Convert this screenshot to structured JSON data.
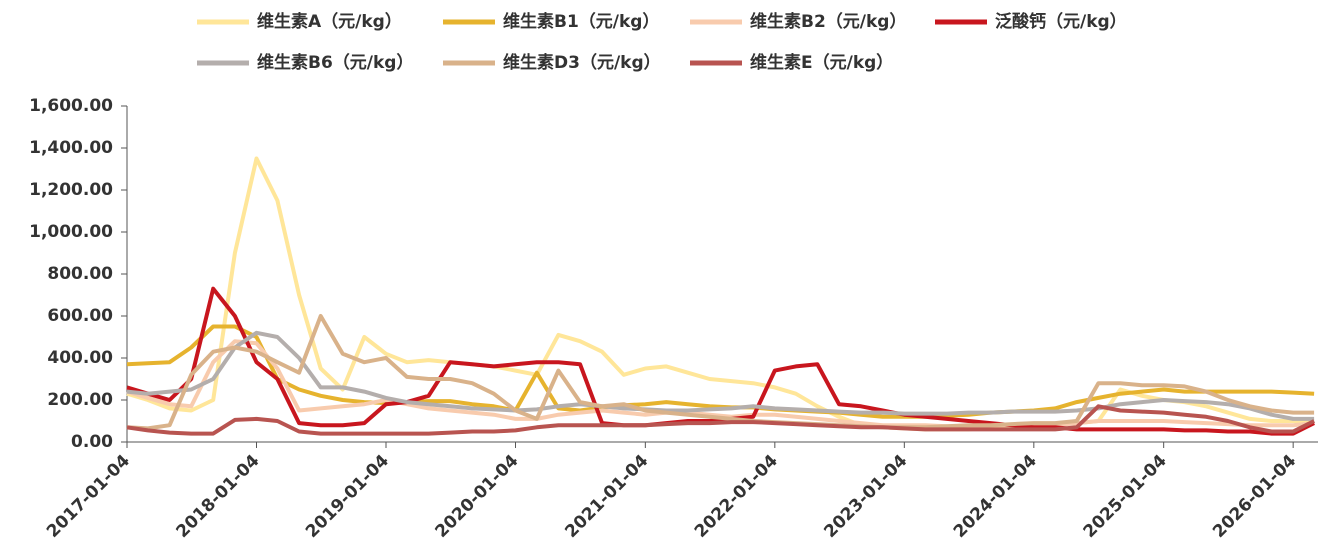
{
  "chart_data": {
    "type": "line",
    "x": [
      "2017-01-04",
      "2017-03-04",
      "2017-05-04",
      "2017-07-04",
      "2017-09-04",
      "2017-11-04",
      "2018-01-04",
      "2018-03-04",
      "2018-05-04",
      "2018-07-04",
      "2018-09-04",
      "2018-11-04",
      "2019-01-04",
      "2019-03-04",
      "2019-05-04",
      "2019-07-04",
      "2019-09-04",
      "2019-11-04",
      "2020-01-04",
      "2020-03-04",
      "2020-05-04",
      "2020-07-04",
      "2020-09-04",
      "2020-11-04",
      "2021-01-04",
      "2021-03-04",
      "2021-05-04",
      "2021-07-04",
      "2021-09-04",
      "2021-11-04",
      "2022-01-04",
      "2022-03-04",
      "2022-05-04",
      "2022-07-04",
      "2022-09-04",
      "2022-11-04",
      "2023-01-04",
      "2023-03-04",
      "2023-05-04",
      "2023-07-04",
      "2023-09-04",
      "2023-11-04",
      "2024-01-04",
      "2024-03-04",
      "2024-05-04",
      "2024-07-04",
      "2024-09-04",
      "2024-11-04",
      "2025-01-04",
      "2025-03-04",
      "2025-05-04",
      "2025-07-04",
      "2025-09-04",
      "2025-11-04",
      "2026-01-04",
      "2026-03-04"
    ],
    "series": [
      {
        "name": "维生素A（元/kg）",
        "color": "#FFE699",
        "values": [
          230,
          200,
          160,
          150,
          200,
          900,
          1350,
          1150,
          700,
          350,
          250,
          500,
          420,
          380,
          390,
          380,
          370,
          360,
          340,
          320,
          510,
          480,
          430,
          320,
          350,
          360,
          330,
          300,
          290,
          280,
          260,
          230,
          170,
          120,
          80,
          70,
          65,
          60,
          60,
          60,
          70,
          75,
          80,
          85,
          90,
          100,
          250,
          220,
          200,
          190,
          170,
          140,
          110,
          100,
          100,
          100
        ]
      },
      {
        "name": "维生素B1（元/kg）",
        "color": "#E6B32E",
        "values": [
          370,
          375,
          380,
          450,
          550,
          550,
          500,
          300,
          250,
          220,
          200,
          190,
          185,
          190,
          195,
          195,
          180,
          170,
          150,
          330,
          160,
          150,
          165,
          175,
          180,
          190,
          180,
          170,
          165,
          165,
          155,
          150,
          145,
          140,
          130,
          120,
          120,
          120,
          125,
          130,
          140,
          145,
          150,
          160,
          190,
          210,
          230,
          240,
          250,
          240,
          240,
          240,
          240,
          240,
          235,
          230
        ]
      },
      {
        "name": "维生素B2（元/kg）",
        "color": "#F8CBAD",
        "values": [
          240,
          210,
          180,
          170,
          380,
          480,
          470,
          350,
          150,
          160,
          170,
          180,
          200,
          180,
          160,
          150,
          140,
          130,
          110,
          110,
          130,
          140,
          150,
          140,
          130,
          140,
          140,
          130,
          120,
          130,
          130,
          120,
          110,
          100,
          90,
          80,
          80,
          80,
          75,
          75,
          80,
          80,
          80,
          80,
          90,
          100,
          100,
          100,
          100,
          95,
          90,
          85,
          80,
          80,
          80,
          90
        ]
      },
      {
        "name": "泛酸钙（元/kg）",
        "color": "#C8161E",
        "values": [
          260,
          230,
          200,
          300,
          730,
          600,
          380,
          300,
          90,
          80,
          80,
          90,
          180,
          190,
          220,
          380,
          370,
          360,
          370,
          380,
          380,
          370,
          90,
          80,
          80,
          90,
          100,
          100,
          110,
          120,
          340,
          360,
          370,
          180,
          170,
          150,
          130,
          120,
          110,
          100,
          90,
          80,
          70,
          70,
          60,
          60,
          60,
          60,
          60,
          55,
          55,
          50,
          50,
          40,
          40,
          90
        ]
      },
      {
        "name": "维生素B6（元/kg）",
        "color": "#B4AEAC",
        "values": [
          240,
          230,
          240,
          250,
          300,
          450,
          520,
          500,
          400,
          260,
          260,
          240,
          210,
          190,
          180,
          170,
          160,
          155,
          150,
          155,
          170,
          180,
          170,
          160,
          155,
          150,
          150,
          155,
          160,
          170,
          160,
          155,
          150,
          145,
          140,
          140,
          135,
          135,
          135,
          140,
          140,
          145,
          145,
          145,
          150,
          160,
          180,
          190,
          200,
          195,
          190,
          180,
          160,
          130,
          110,
          110
        ]
      },
      {
        "name": "维生素D3（元/kg）",
        "color": "#D9B28A",
        "values": [
          70,
          65,
          80,
          320,
          430,
          450,
          430,
          380,
          330,
          600,
          420,
          380,
          400,
          310,
          300,
          300,
          280,
          230,
          150,
          110,
          340,
          190,
          170,
          180,
          150,
          140,
          130,
          120,
          110,
          100,
          95,
          90,
          85,
          80,
          75,
          70,
          70,
          70,
          75,
          80,
          80,
          85,
          90,
          90,
          100,
          280,
          280,
          270,
          270,
          265,
          240,
          200,
          170,
          150,
          140,
          140
        ]
      },
      {
        "name": "维生素E（元/kg）",
        "color": "#B85450",
        "values": [
          70,
          55,
          45,
          40,
          40,
          105,
          110,
          100,
          50,
          40,
          40,
          40,
          40,
          40,
          40,
          45,
          50,
          50,
          55,
          70,
          80,
          80,
          80,
          80,
          80,
          85,
          90,
          90,
          95,
          95,
          90,
          85,
          80,
          75,
          70,
          70,
          65,
          60,
          60,
          60,
          60,
          60,
          60,
          60,
          70,
          170,
          150,
          145,
          140,
          130,
          120,
          100,
          70,
          50,
          50,
          100
        ]
      }
    ],
    "xlim": [
      "2017-01-04",
      "2026-03-15"
    ],
    "xticks": [
      "2017-01-04",
      "2018-01-04",
      "2019-01-04",
      "2020-01-04",
      "2021-01-04",
      "2022-01-04",
      "2023-01-04",
      "2024-01-04",
      "2025-01-04",
      "2026-01-04"
    ],
    "ylim": [
      0,
      1600
    ],
    "yticks": [
      {
        "value": 0,
        "label": "0.00"
      },
      {
        "value": 200,
        "label": "200.00"
      },
      {
        "value": 400,
        "label": "400.00"
      },
      {
        "value": 600,
        "label": "600.00"
      },
      {
        "value": 800,
        "label": "800.00"
      },
      {
        "value": 1000,
        "label": "1,000.00"
      },
      {
        "value": 1200,
        "label": "1,200.00"
      },
      {
        "value": 1400,
        "label": "1,400.00"
      },
      {
        "value": 1600,
        "label": "1,600.00"
      }
    ],
    "grid": false
  }
}
